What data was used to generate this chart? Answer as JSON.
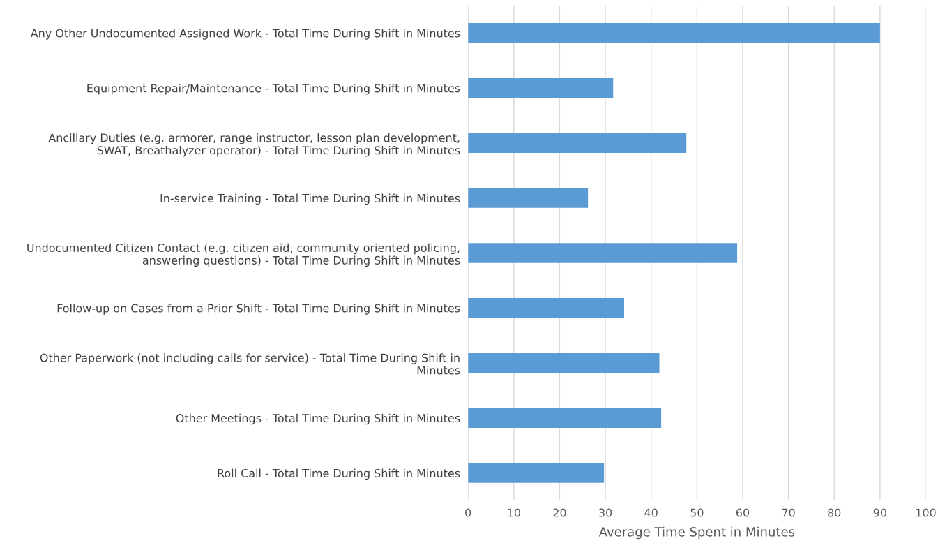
{
  "chart_data": {
    "type": "bar",
    "orientation": "horizontal",
    "xlabel": "Average Time Spent in Minutes",
    "categories": [
      "Any Other Undocumented Assigned Work - Total Time During Shift in Minutes",
      "Equipment Repair/Maintenance - Total Time During Shift in Minutes",
      "Ancillary Duties (e.g. armorer, range instructor, lesson plan development,\nSWAT, Breathalyzer operator) - Total Time During Shift in Minutes",
      "In-service Training - Total Time During Shift in Minutes",
      "Undocumented Citizen Contact (e.g. citizen aid, community oriented policing,\nanswering questions) - Total Time During Shift in Minutes",
      "Follow-up on Cases from a Prior Shift - Total Time During Shift in Minutes",
      "Other Paperwork (not including calls for service) - Total Time During Shift in\nMinutes",
      "Other Meetings - Total Time During Shift in Minutes",
      "Roll Call - Total Time During Shift in Minutes"
    ],
    "values": [
      90,
      31.7,
      47.7,
      26.2,
      58.8,
      34.1,
      41.8,
      42.2,
      29.7
    ],
    "color": "#5b9bd5",
    "xlim": [
      0,
      100
    ],
    "xticks": [
      0,
      10,
      20,
      30,
      40,
      50,
      60,
      70,
      80,
      90,
      100
    ],
    "grid": "x"
  }
}
